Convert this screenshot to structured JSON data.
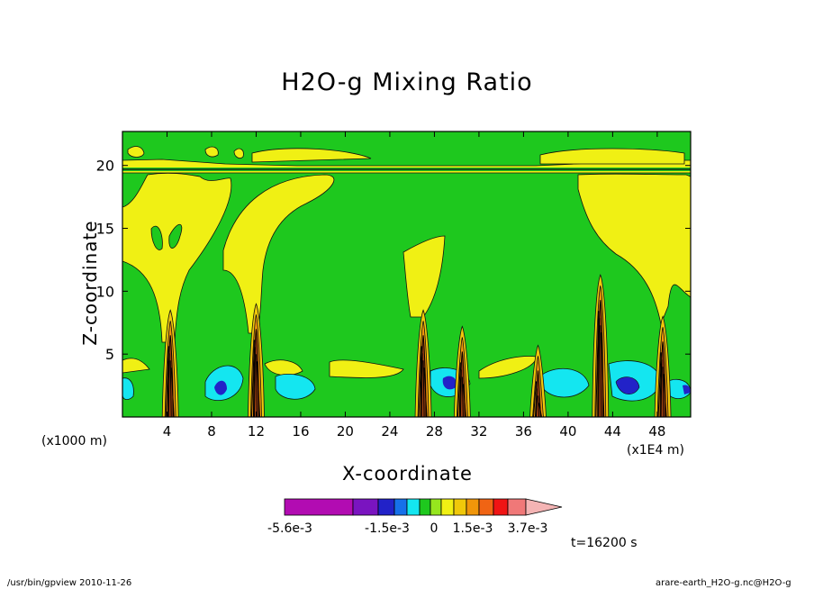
{
  "chart_data": {
    "type": "heatmap",
    "title": "H2O-g Mixing Ratio",
    "xlabel": "X-coordinate",
    "ylabel": "Z-coordinate",
    "x_unit": "(x1000 m)",
    "x_extra_unit": "(x1E4 m)",
    "x_ticks": [
      "4",
      "8",
      "12",
      "16",
      "20",
      "24",
      "28",
      "32",
      "36",
      "40",
      "44",
      "48"
    ],
    "y_ticks": [
      "5",
      "10",
      "15",
      "20"
    ],
    "xlim": [
      0,
      51
    ],
    "ylim": [
      0,
      22.7
    ],
    "colorbar_labels": [
      "-5.6e-3",
      "-1.5e-3",
      "0",
      "1.5e-3",
      "3.7e-3"
    ],
    "colorbar_colors": [
      "#b20cb2",
      "#7a14c0",
      "#2222c8",
      "#1670ea",
      "#14e6f0",
      "#1ec81e",
      "#96e61e",
      "#f0f014",
      "#f0c80a",
      "#f0960a",
      "#f06414",
      "#f01414",
      "#f07878",
      "#f4b4b4"
    ],
    "time_label": "t=16200 s",
    "footer_left": "/usr/bin/gpview  2010-11-26",
    "footer_right": "arare-earth_H2O-g.nc@H2O-g",
    "background_color": "#1ec81e",
    "towers": [
      {
        "x": 4.3,
        "top": 8.5
      },
      {
        "x": 12.0,
        "top": 9.0
      },
      {
        "x": 27.0,
        "top": 8.5
      },
      {
        "x": 30.5,
        "top": 7.2
      },
      {
        "x": 37.3,
        "top": 5.7
      },
      {
        "x": 42.9,
        "top": 11.3
      },
      {
        "x": 48.5,
        "top": 8.0
      }
    ]
  }
}
